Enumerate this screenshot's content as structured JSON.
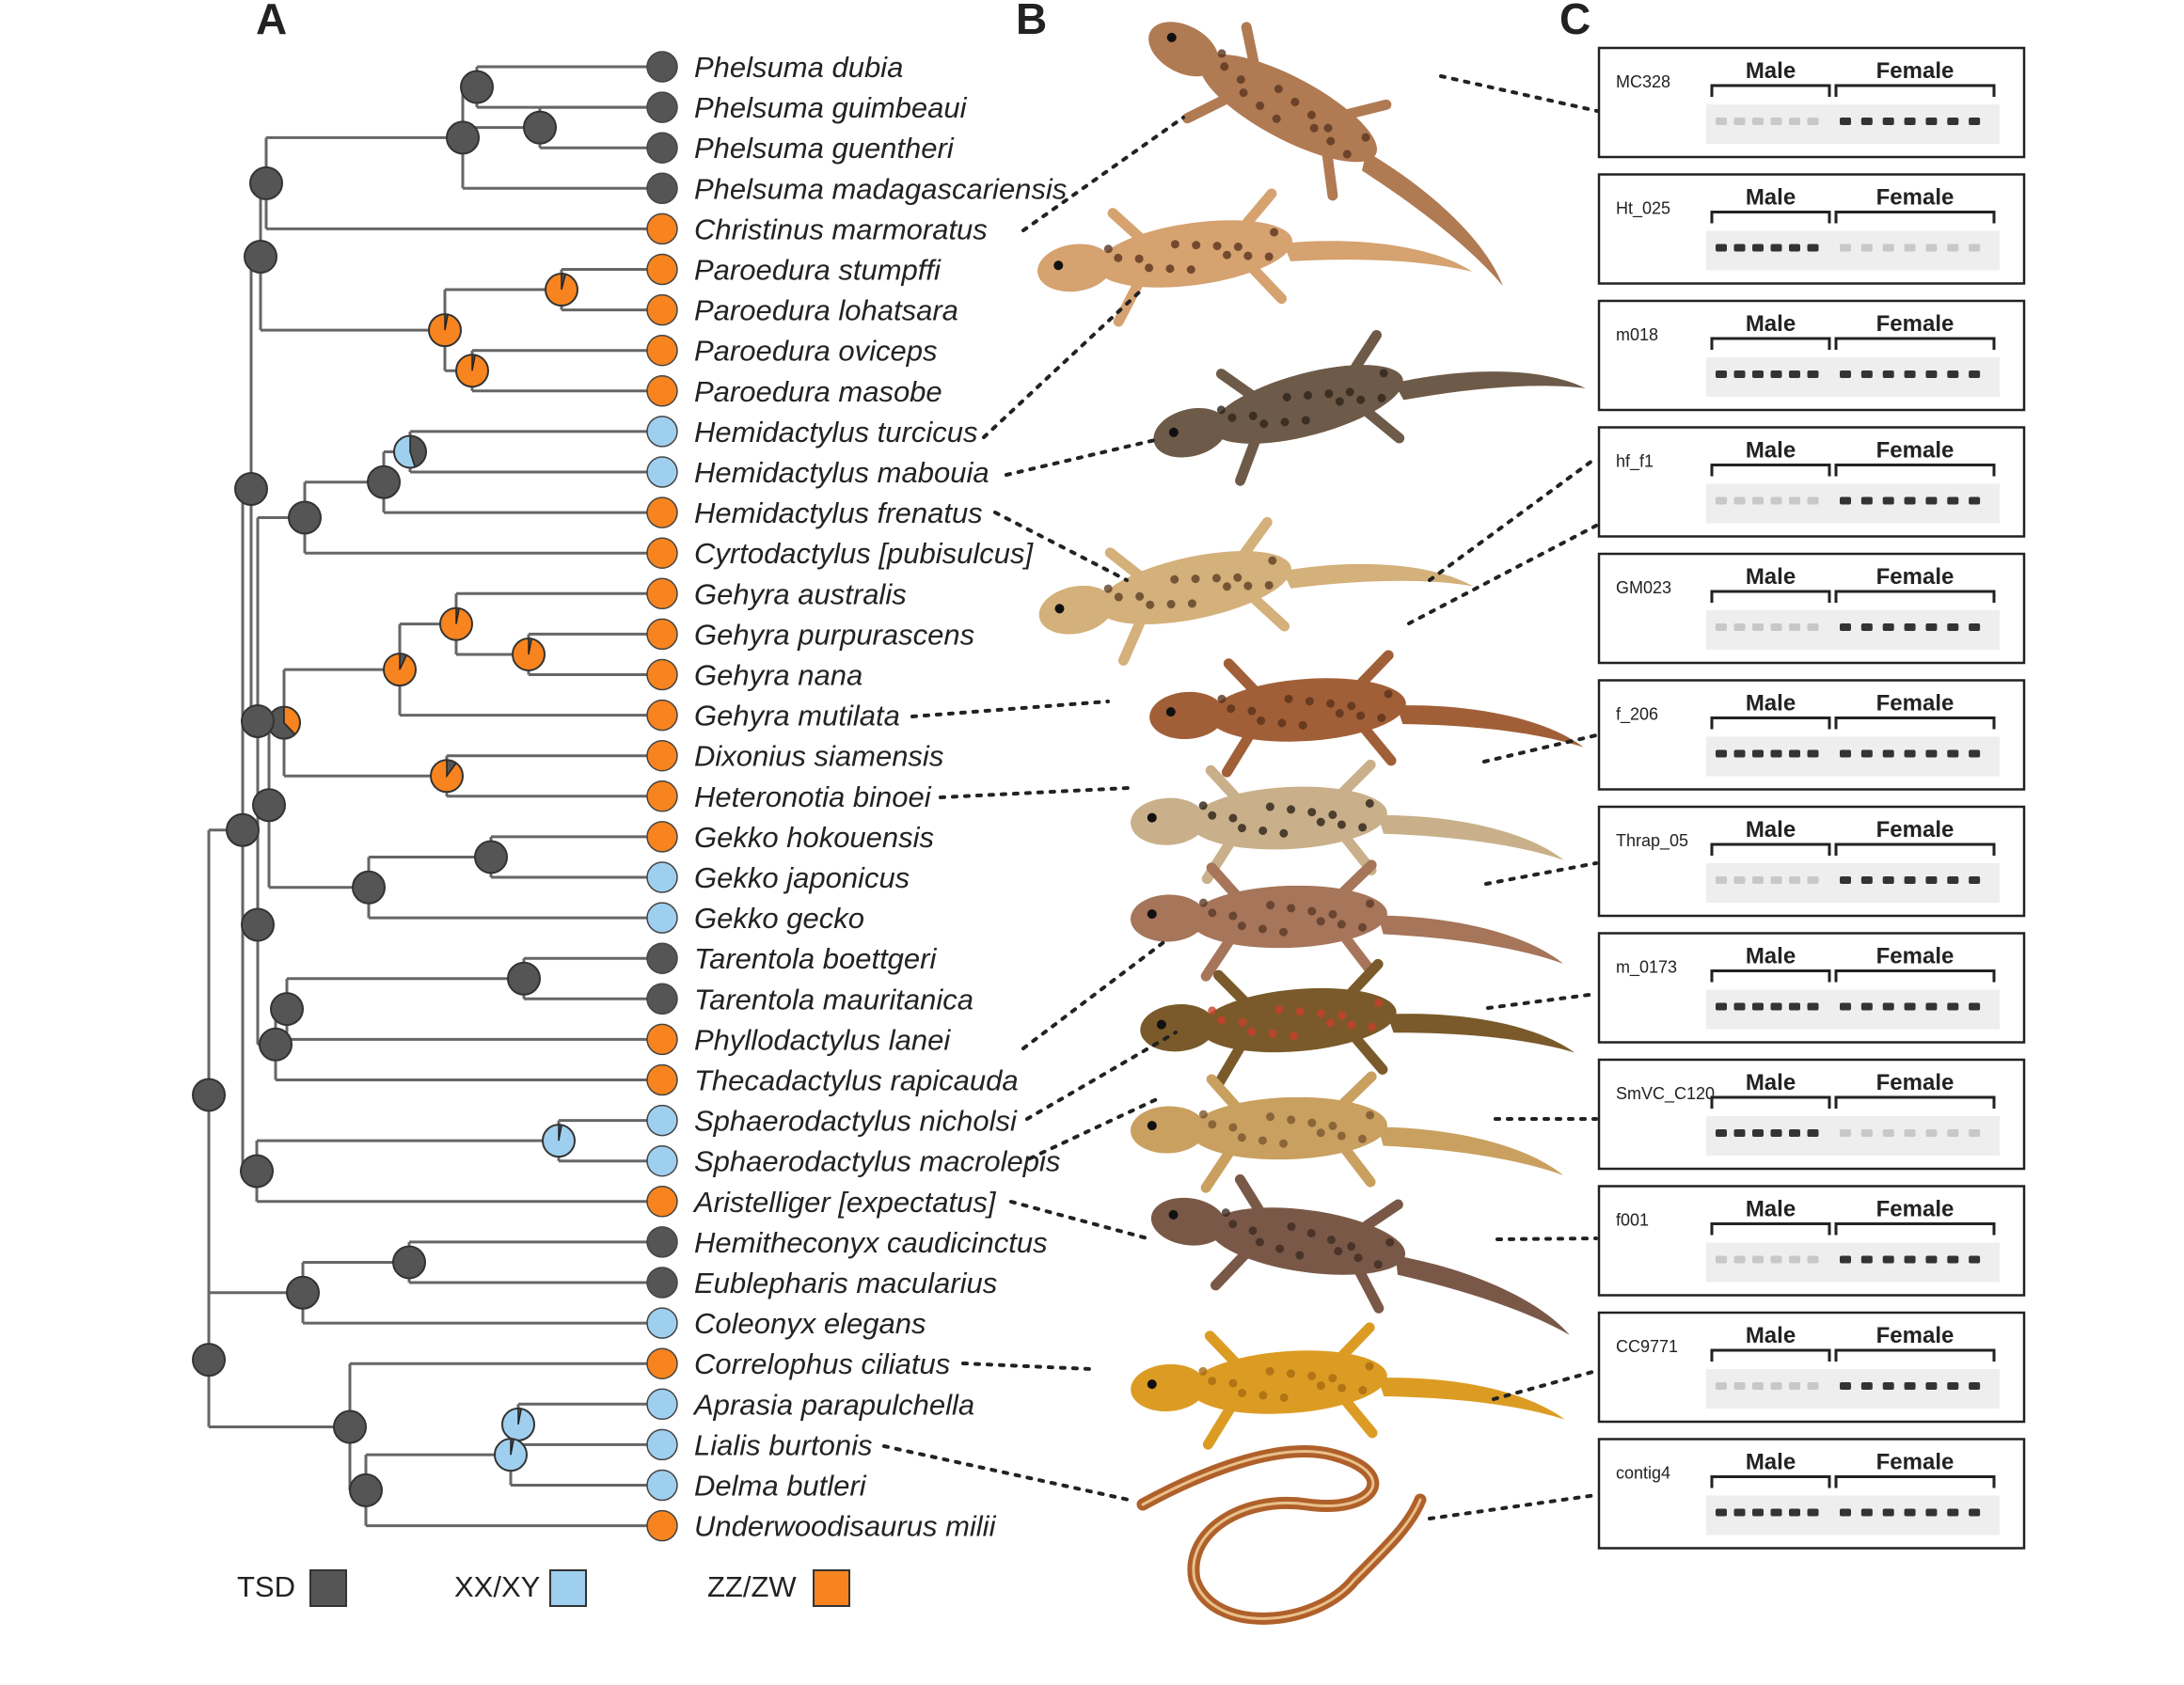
{
  "panels": [
    "A",
    "B",
    "C"
  ],
  "colors": {
    "tsd": "#555555",
    "xy": "#9fcfee",
    "zw": "#f7841e",
    "branch": "#666666"
  },
  "taxa": [
    {
      "name": "Phelsuma dubia",
      "state": "tsd"
    },
    {
      "name": "Phelsuma guimbeaui",
      "state": "tsd"
    },
    {
      "name": "Phelsuma guentheri",
      "state": "tsd"
    },
    {
      "name": "Phelsuma madagascariensis",
      "state": "tsd"
    },
    {
      "name": "Christinus marmoratus",
      "state": "zw"
    },
    {
      "name": "Paroedura stumpffi",
      "state": "zw"
    },
    {
      "name": "Paroedura lohatsara",
      "state": "zw"
    },
    {
      "name": "Paroedura oviceps",
      "state": "zw"
    },
    {
      "name": "Paroedura masobe",
      "state": "zw"
    },
    {
      "name": "Hemidactylus turcicus",
      "state": "xy"
    },
    {
      "name": "Hemidactylus mabouia",
      "state": "xy"
    },
    {
      "name": "Hemidactylus frenatus",
      "state": "zw"
    },
    {
      "name": "Cyrtodactylus [pubisulcus]",
      "state": "zw"
    },
    {
      "name": "Gehyra australis",
      "state": "zw"
    },
    {
      "name": "Gehyra purpurascens",
      "state": "zw"
    },
    {
      "name": "Gehyra nana",
      "state": "zw"
    },
    {
      "name": "Gehyra mutilata",
      "state": "zw"
    },
    {
      "name": "Dixonius siamensis",
      "state": "zw"
    },
    {
      "name": "Heteronotia binoei",
      "state": "zw"
    },
    {
      "name": "Gekko hokouensis",
      "state": "zw"
    },
    {
      "name": "Gekko japonicus",
      "state": "xy"
    },
    {
      "name": "Gekko gecko",
      "state": "xy"
    },
    {
      "name": "Tarentola boettgeri",
      "state": "tsd"
    },
    {
      "name": "Tarentola mauritanica",
      "state": "tsd"
    },
    {
      "name": "Phyllodactylus lanei",
      "state": "zw"
    },
    {
      "name": "Thecadactylus rapicauda",
      "state": "zw"
    },
    {
      "name": "Sphaerodactylus nicholsi",
      "state": "xy"
    },
    {
      "name": "Sphaerodactylus macrolepis",
      "state": "xy"
    },
    {
      "name": "Aristelliger [expectatus]",
      "state": "zw"
    },
    {
      "name": "Hemitheconyx caudicinctus",
      "state": "tsd"
    },
    {
      "name": "Eublepharis macularius",
      "state": "tsd"
    },
    {
      "name": "Coleonyx elegans",
      "state": "xy"
    },
    {
      "name": "Correlophus ciliatus",
      "state": "zw"
    },
    {
      "name": "Aprasia parapulchella",
      "state": "xy"
    },
    {
      "name": "Lialis burtonis",
      "state": "xy"
    },
    {
      "name": "Delma butleri",
      "state": "xy"
    },
    {
      "name": "Underwoodisaurus milii",
      "state": "zw"
    }
  ],
  "legend": [
    {
      "label": "TSD",
      "state": "tsd"
    },
    {
      "label": "XX/XY",
      "state": "xy"
    },
    {
      "label": "ZZ/ZW",
      "state": "zw"
    }
  ],
  "gels": [
    {
      "id": "MC328",
      "male": "Male",
      "female": "Female",
      "strong": "female"
    },
    {
      "id": "Ht_025",
      "male": "Male",
      "female": "Female",
      "strong": "male"
    },
    {
      "id": "m018",
      "male": "Male",
      "female": "Female",
      "strong": "both"
    },
    {
      "id": "hf_f1",
      "male": "Male",
      "female": "Female",
      "strong": "female"
    },
    {
      "id": "GM023",
      "male": "Male",
      "female": "Female",
      "strong": "female"
    },
    {
      "id": "f_206",
      "male": "Male",
      "female": "Female",
      "strong": "both"
    },
    {
      "id": "Thrap_05",
      "male": "Male",
      "female": "Female",
      "strong": "female"
    },
    {
      "id": "m_0173",
      "male": "Male",
      "female": "Female",
      "strong": "both"
    },
    {
      "id": "SmVC_C120",
      "male": "Male",
      "female": "Female",
      "strong": "male"
    },
    {
      "id": "f001",
      "male": "Male",
      "female": "Female",
      "strong": "female"
    },
    {
      "id": "CC9771",
      "male": "Male",
      "female": "Female",
      "strong": "female"
    },
    {
      "id": "contig4",
      "male": "Male",
      "female": "Female",
      "strong": "both"
    }
  ],
  "photos": [
    {
      "icon": "gecko-photo-phelsuma",
      "body": "#b07a52",
      "spot": "#5a3520"
    },
    {
      "icon": "gecko-photo-christinus",
      "body": "#d5a270",
      "spot": "#5a3520"
    },
    {
      "icon": "gecko-photo-hemidactylus",
      "body": "#6e5a48",
      "spot": "#2e241a"
    },
    {
      "icon": "gecko-photo-cyrtodactylus",
      "body": "#d4b07a",
      "spot": "#5b4026"
    },
    {
      "icon": "gecko-photo-gehyra",
      "body": "#a15f38",
      "spot": "#5a321c"
    },
    {
      "icon": "gecko-photo-heteronotia",
      "body": "#c9b08a",
      "spot": "#2c2218"
    },
    {
      "icon": "gecko-photo-thecadactylus",
      "body": "#a6755a",
      "spot": "#5a3a28"
    },
    {
      "icon": "gecko-photo-sphaerodactylus-nicholsi",
      "body": "#7a5a2a",
      "spot": "#c8402a"
    },
    {
      "icon": "gecko-photo-sphaerodactylus-macrolepis",
      "body": "#c9a060",
      "spot": "#7a5630"
    },
    {
      "icon": "gecko-photo-aristelliger",
      "body": "#7a5848",
      "spot": "#3e2a22"
    },
    {
      "icon": "gecko-photo-correlophus",
      "body": "#dc9c24",
      "spot": "#a86a10"
    },
    {
      "icon": "legless-lizard-photo-lialis",
      "body": "#b0602a",
      "spot": "#e8c08a"
    }
  ]
}
